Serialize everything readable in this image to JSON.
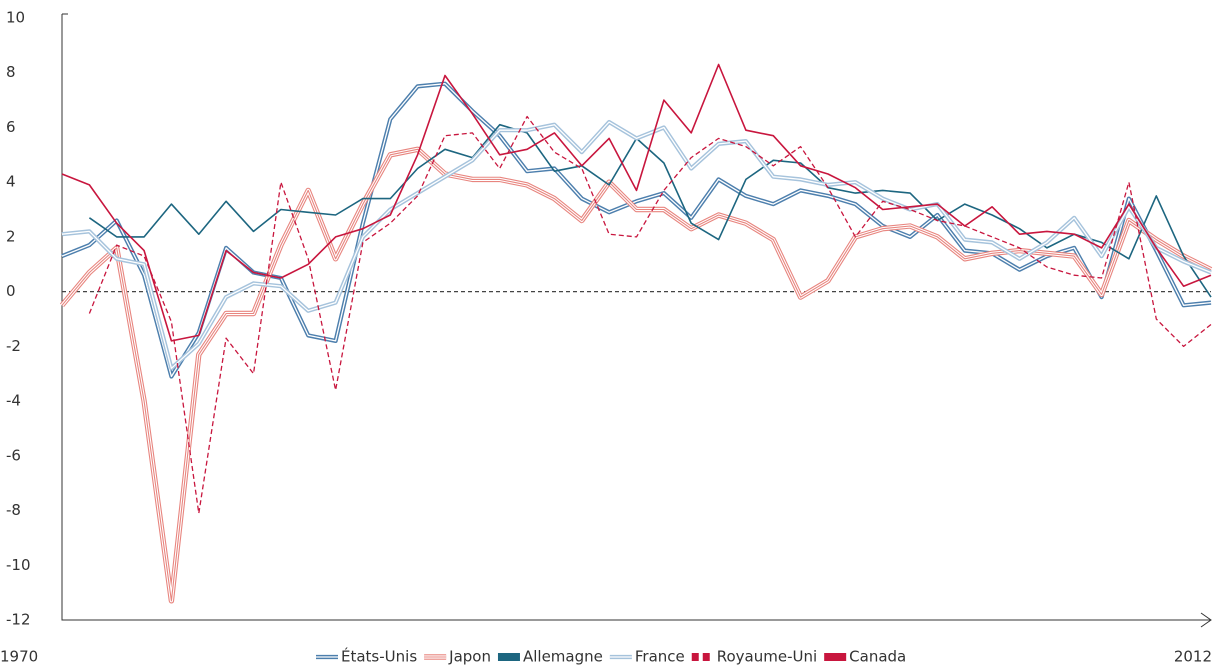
{
  "chart_data": {
    "type": "line",
    "x": [
      1970,
      1971,
      1972,
      1973,
      1974,
      1975,
      1976,
      1977,
      1978,
      1979,
      1980,
      1981,
      1982,
      1983,
      1984,
      1985,
      1986,
      1987,
      1988,
      1989,
      1990,
      1991,
      1992,
      1993,
      1994,
      1995,
      1996,
      1997,
      1998,
      1999,
      2000,
      2001,
      2002,
      2003,
      2004,
      2005,
      2006,
      2007,
      2008,
      2009,
      2010,
      2011,
      2012
    ],
    "xlim": [
      1970,
      2012
    ],
    "xticks": [
      1970,
      2012
    ],
    "ylim": [
      -12,
      10
    ],
    "yticks": [
      -12,
      -10,
      -8,
      -6,
      -4,
      -2,
      0,
      2,
      4,
      6,
      8,
      10
    ],
    "reference_line": 0,
    "series": [
      {
        "name": "États-Unis",
        "color": "#4d7fad",
        "style": "double",
        "values": [
          1.3,
          1.7,
          2.6,
          0.6,
          -3.1,
          -1.5,
          1.6,
          0.7,
          0.5,
          -1.6,
          -1.8,
          2.5,
          6.3,
          7.5,
          7.6,
          6.6,
          5.7,
          4.4,
          4.5,
          3.4,
          2.9,
          3.3,
          3.6,
          2.7,
          4.1,
          3.5,
          3.2,
          3.7,
          3.5,
          3.2,
          2.4,
          2.0,
          2.8,
          1.5,
          1.4,
          0.8,
          1.3,
          1.6,
          -0.2,
          3.4,
          1.5,
          -0.5,
          -0.4
        ]
      },
      {
        "name": "Japon",
        "color": "#e8857f",
        "style": "triple",
        "values": [
          -0.5,
          0.7,
          1.6,
          -4.0,
          -11.3,
          -2.3,
          -0.8,
          -0.8,
          1.7,
          3.7,
          1.2,
          3.2,
          5.0,
          5.2,
          4.3,
          4.1,
          4.1,
          3.9,
          3.4,
          2.6,
          4.0,
          3.0,
          3.0,
          2.3,
          2.8,
          2.5,
          1.9,
          -0.2,
          0.4,
          2.0,
          2.3,
          2.4,
          2.0,
          1.2,
          1.4,
          1.5,
          1.4,
          1.3,
          -0.1,
          2.6,
          1.9,
          1.3,
          0.8
        ]
      },
      {
        "name": "Allemagne",
        "color": "#1d6680",
        "style": "solid",
        "values": [
          null,
          2.7,
          2.0,
          2.0,
          3.2,
          2.1,
          3.3,
          2.2,
          3.0,
          2.9,
          2.8,
          3.4,
          3.4,
          4.5,
          5.2,
          4.9,
          6.1,
          5.8,
          4.4,
          4.6,
          3.9,
          5.6,
          4.7,
          2.5,
          1.9,
          4.1,
          4.8,
          4.7,
          3.8,
          3.6,
          3.7,
          3.6,
          2.6,
          3.2,
          2.8,
          2.3,
          1.6,
          2.1,
          1.8,
          1.2,
          3.5,
          1.3,
          -0.2
        ]
      },
      {
        "name": "France",
        "color": "#a6c3dc",
        "style": "double",
        "values": [
          2.1,
          2.2,
          1.2,
          1.0,
          -2.8,
          -1.9,
          -0.2,
          0.3,
          0.2,
          -0.7,
          -0.4,
          2.0,
          3.0,
          3.6,
          4.2,
          4.8,
          5.9,
          5.9,
          6.1,
          5.1,
          6.2,
          5.6,
          6.0,
          4.5,
          5.4,
          5.5,
          4.2,
          4.1,
          3.9,
          4.0,
          3.4,
          3.0,
          3.2,
          1.9,
          1.8,
          1.2,
          1.8,
          2.7,
          1.3,
          3.1,
          1.6,
          1.1,
          0.7
        ]
      },
      {
        "name": "Royaume-Uni",
        "color": "#c8163e",
        "style": "dashed",
        "values": [
          null,
          -0.8,
          1.7,
          1.3,
          -1.1,
          -8.1,
          -1.7,
          -3.0,
          4.0,
          1.2,
          -3.6,
          1.8,
          2.5,
          3.5,
          5.7,
          5.8,
          4.5,
          6.4,
          5.1,
          4.5,
          2.1,
          2.0,
          3.7,
          4.9,
          5.6,
          5.3,
          4.6,
          5.3,
          3.8,
          2.0,
          3.3,
          3.0,
          2.6,
          2.4,
          2.0,
          1.6,
          0.9,
          0.6,
          0.5,
          4.0,
          -1.0,
          -2.0,
          -1.2
        ]
      },
      {
        "name": "Canada",
        "color": "#c8163e",
        "style": "solid",
        "values": [
          4.3,
          3.9,
          2.5,
          1.5,
          -1.8,
          -1.6,
          1.5,
          0.7,
          0.5,
          1.0,
          2.0,
          2.3,
          2.8,
          5.0,
          7.9,
          6.5,
          5.0,
          5.2,
          5.8,
          4.6,
          5.6,
          3.7,
          7.0,
          5.8,
          8.3,
          5.9,
          5.7,
          4.6,
          4.3,
          3.8,
          3.0,
          3.1,
          3.2,
          2.4,
          3.1,
          2.1,
          2.2,
          2.1,
          1.6,
          3.2,
          1.6,
          0.2,
          0.6
        ]
      }
    ]
  }
}
